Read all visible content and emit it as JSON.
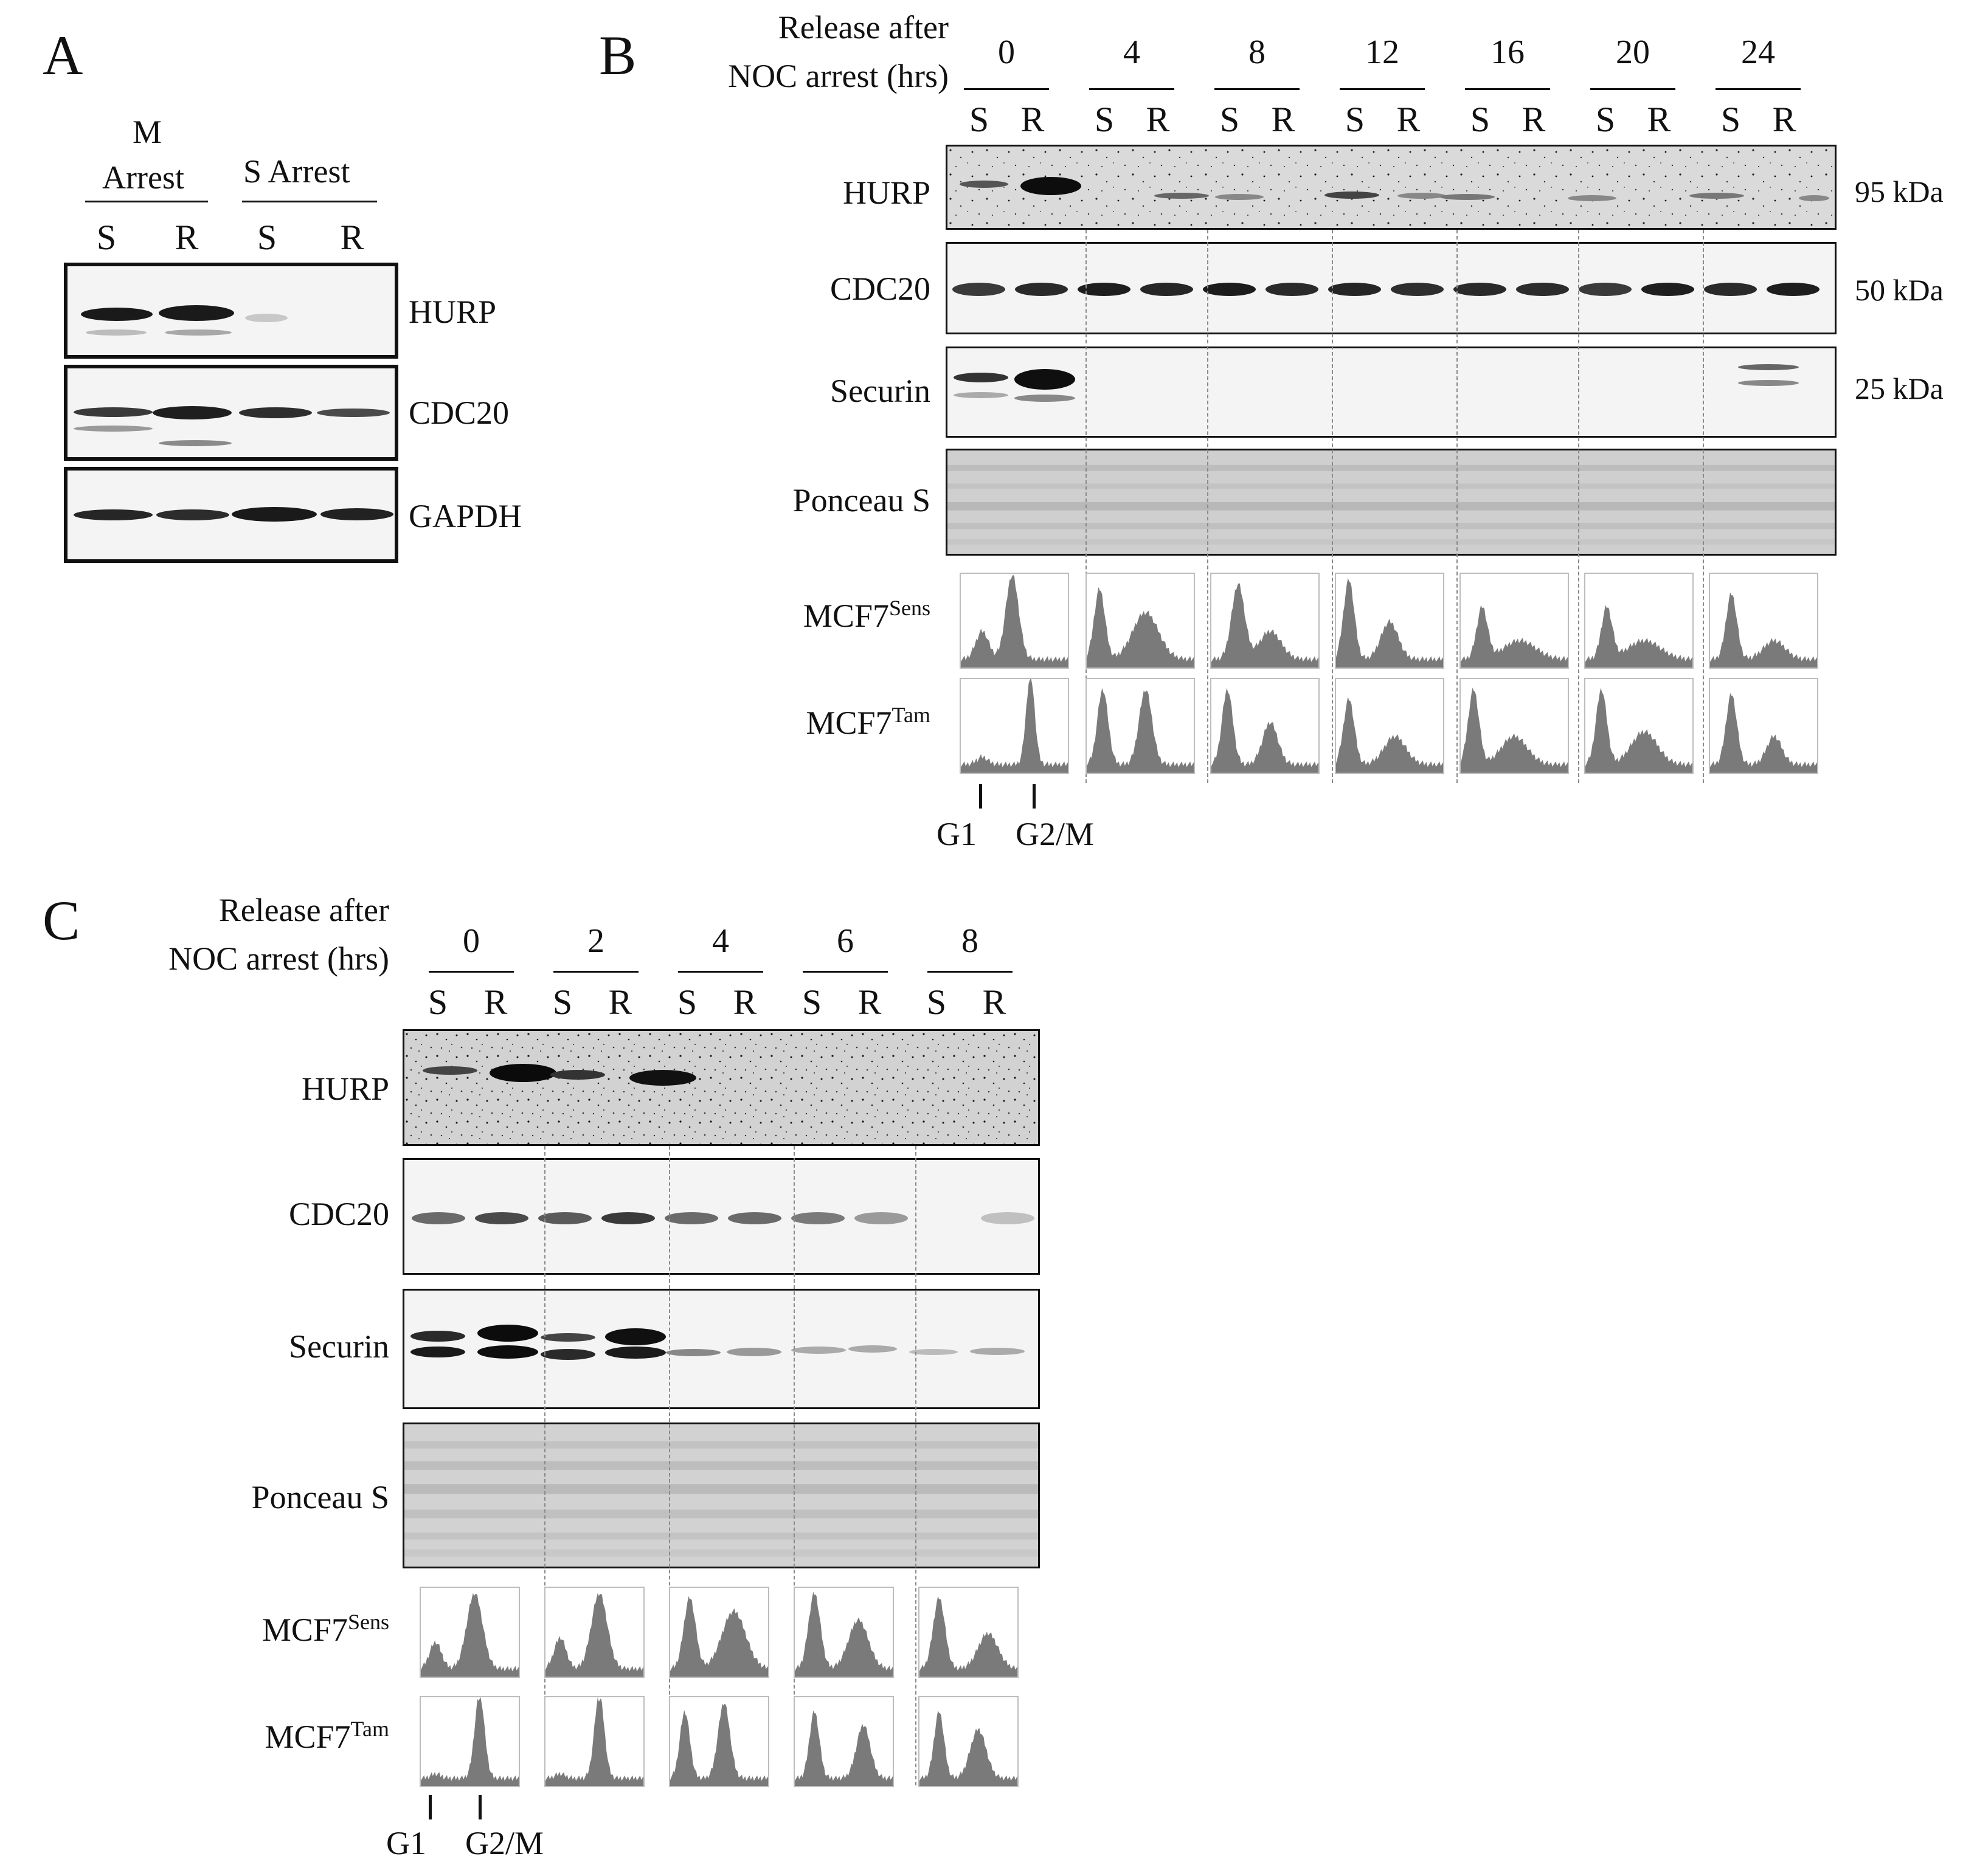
{
  "panel_a": {
    "letter": "A",
    "group1_line1": "M",
    "group1_line2": "Arrest",
    "group2": "S Arrest",
    "lanes": [
      "S",
      "R",
      "S",
      "R"
    ],
    "blots": [
      "HURP",
      "CDC20",
      "GAPDH"
    ]
  },
  "panel_b": {
    "letter": "B",
    "header_line1": "Release after",
    "header_line2": "NOC arrest (hrs)",
    "timepoints": [
      "0",
      "4",
      "8",
      "12",
      "16",
      "20",
      "24"
    ],
    "lane_s": "S",
    "lane_r": "R",
    "blots": [
      "HURP",
      "CDC20",
      "Securin",
      "Ponceau S"
    ],
    "sizes": [
      "95 kDa",
      "50 kDa",
      "25 kDa"
    ],
    "flow_base": "MCF7",
    "flow_rows": [
      "Sens",
      "Tam"
    ],
    "g1": "G1",
    "g2m": "G2/M"
  },
  "panel_c": {
    "letter": "C",
    "header_line1": "Release after",
    "header_line2": "NOC arrest (hrs)",
    "timepoints": [
      "0",
      "2",
      "4",
      "6",
      "8"
    ],
    "lane_s": "S",
    "lane_r": "R",
    "blots": [
      "HURP",
      "CDC20",
      "Securin",
      "Ponceau S"
    ],
    "flow_base": "MCF7",
    "flow_rows": [
      "Sens",
      "Tam"
    ],
    "g1": "G1",
    "g2m": "G2/M"
  }
}
